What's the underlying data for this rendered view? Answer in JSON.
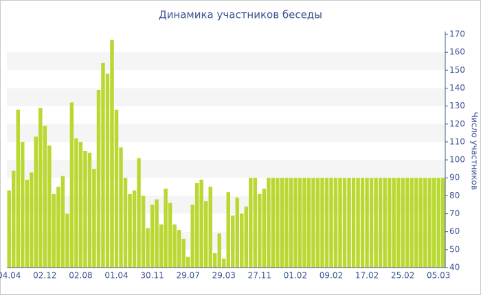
{
  "chart_data": {
    "type": "bar",
    "title": "Динамика участников беседы",
    "y_label": "Число участников",
    "categories": [
      "04.04",
      null,
      null,
      null,
      null,
      null,
      null,
      null,
      "02.12",
      null,
      null,
      null,
      null,
      null,
      null,
      null,
      "02.08",
      null,
      null,
      null,
      null,
      null,
      null,
      null,
      "01.04",
      null,
      null,
      null,
      null,
      null,
      null,
      null,
      "30.11",
      null,
      null,
      null,
      null,
      null,
      null,
      null,
      "29.07",
      null,
      null,
      null,
      null,
      null,
      null,
      null,
      "29.03",
      null,
      null,
      null,
      null,
      null,
      null,
      null,
      "27.11",
      null,
      null,
      null,
      null,
      null,
      null,
      null,
      "01.02",
      null,
      null,
      null,
      null,
      null,
      null,
      null,
      "09.02",
      null,
      null,
      null,
      null,
      null,
      null,
      null,
      "17.02",
      null,
      null,
      null,
      null,
      null,
      null,
      null,
      "25.02",
      null,
      null,
      null,
      null,
      null,
      null,
      null,
      "05.03",
      null
    ],
    "values": [
      83,
      94,
      128,
      110,
      89,
      93,
      113,
      129,
      119,
      108,
      81,
      85,
      91,
      70,
      132,
      112,
      110,
      105,
      104,
      95,
      139,
      154,
      148,
      167,
      128,
      107,
      90,
      81,
      83,
      101,
      80,
      62,
      75,
      78,
      64,
      84,
      76,
      64,
      61,
      56,
      46,
      75,
      87,
      89,
      77,
      85,
      48,
      59,
      45,
      82,
      69,
      79,
      70,
      74,
      90,
      90,
      81,
      84,
      90,
      90,
      90,
      90,
      90,
      90,
      90,
      90,
      90,
      90,
      90,
      90,
      90,
      90,
      90,
      90,
      90,
      90,
      90,
      90,
      90,
      90,
      90,
      90,
      90,
      90,
      90,
      90,
      90,
      90,
      90,
      90,
      90,
      90,
      90,
      90,
      90,
      90,
      90,
      90
    ],
    "color": "#bad832",
    "ylim": [
      40,
      170
    ],
    "yticks": [
      40,
      50,
      60,
      70,
      80,
      90,
      100,
      110,
      120,
      130,
      140,
      150,
      160,
      170
    ],
    "grid": "bands"
  }
}
